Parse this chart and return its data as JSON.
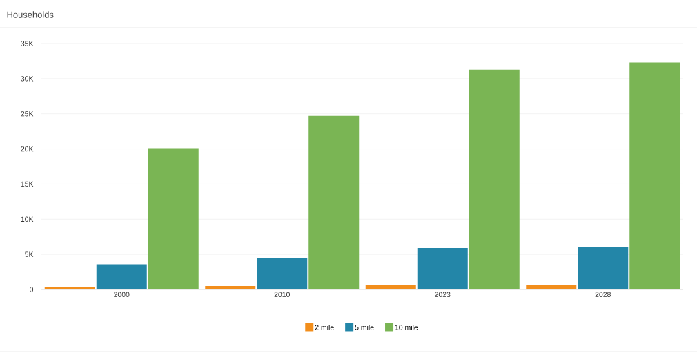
{
  "chart_data": {
    "type": "bar",
    "title": "Households",
    "categories": [
      "2000",
      "2010",
      "2023",
      "2028"
    ],
    "series": [
      {
        "name": "2 mile",
        "color": "#f28e1c",
        "values": [
          400,
          500,
          700,
          700
        ]
      },
      {
        "name": "5 mile",
        "color": "#2386a8",
        "values": [
          3600,
          4450,
          5900,
          6100
        ]
      },
      {
        "name": "10 mile",
        "color": "#7ab554",
        "values": [
          20100,
          24700,
          31300,
          32300
        ]
      }
    ],
    "ylim": [
      0,
      35000
    ],
    "yticks": [
      0,
      {
        "value": 5000,
        "label": "5K"
      },
      {
        "value": 10000,
        "label": "10K"
      },
      {
        "value": 15000,
        "label": "15K"
      },
      {
        "value": 20000,
        "label": "20K"
      },
      {
        "value": 25000,
        "label": "25K"
      },
      {
        "value": 30000,
        "label": "30K"
      },
      {
        "value": 35000,
        "label": "35K"
      }
    ],
    "grid": "y",
    "legend": "bottom"
  }
}
